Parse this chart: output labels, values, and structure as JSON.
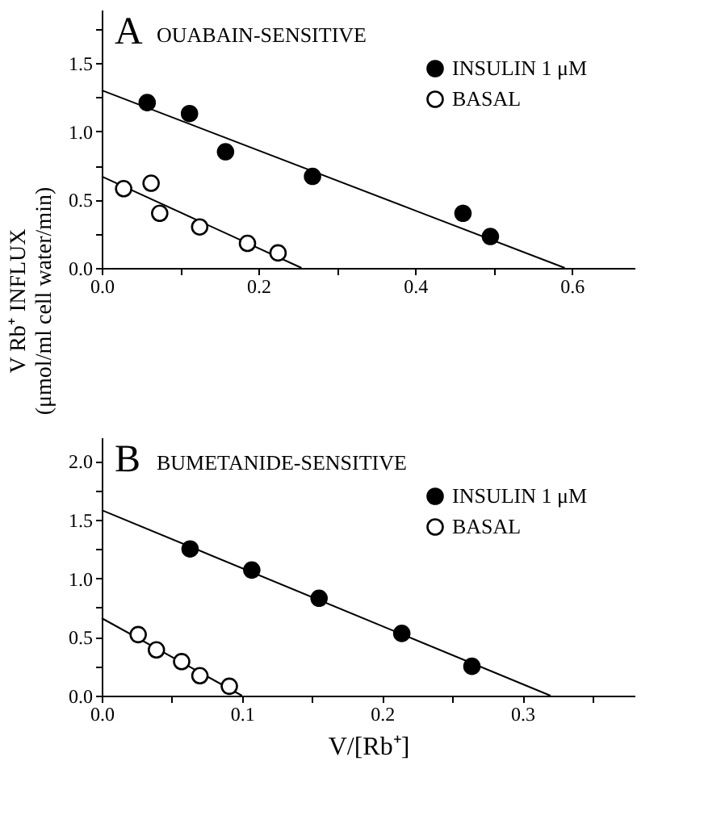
{
  "chart_data": [
    {
      "type": "scatter",
      "annotations": [
        "A",
        "OUABAIN-SENSITIVE"
      ],
      "ylabel": "V Rb⁺ INFLUX\n(μmol/ml cell water/min)",
      "legend": "top right",
      "grid": false,
      "xlim": [
        0,
        0.68
      ],
      "ylim": [
        0,
        1.89
      ],
      "xticks": [
        {
          "value": 0,
          "label": "0.0"
        },
        {
          "value": 0.1,
          "label": null
        },
        {
          "value": 0.2,
          "label": "0.2"
        },
        {
          "value": 0.3,
          "label": null
        },
        {
          "value": 0.4,
          "label": "0.4"
        },
        {
          "value": 0.5,
          "label": null
        },
        {
          "value": 0.6,
          "label": "0.6"
        }
      ],
      "yticks": [
        {
          "value": 0,
          "label": "0.0"
        },
        {
          "value": 0.25,
          "label": null
        },
        {
          "value": 0.5,
          "label": "0.5"
        },
        {
          "value": 0.75,
          "label": null
        },
        {
          "value": 1.0,
          "label": "1.0"
        },
        {
          "value": 1.25,
          "label": null
        },
        {
          "value": 1.5,
          "label": "1.5"
        },
        {
          "value": 1.75,
          "label": null
        }
      ],
      "series": [
        {
          "name": "INSULIN 1 μM",
          "type": "scatter",
          "marker": "circle",
          "color": "#000000",
          "x": [
            0.058,
            0.112,
            0.158,
            0.269,
            0.461,
            0.496
          ],
          "values": [
            1.21,
            1.13,
            0.85,
            0.67,
            0.4,
            0.23
          ]
        },
        {
          "name": "BASAL",
          "type": "scatter",
          "marker": "circle",
          "color": "#ffffff",
          "x": [
            0.028,
            0.063,
            0.074,
            0.125,
            0.186,
            0.225
          ],
          "values": [
            0.58,
            0.62,
            0.4,
            0.3,
            0.18,
            0.11
          ]
        },
        {
          "type": "line",
          "color": "#000000",
          "x": [
            0,
            0.591
          ],
          "values": [
            1.3,
            0
          ]
        },
        {
          "type": "line",
          "color": "#000000",
          "x": [
            0,
            0.255
          ],
          "values": [
            0.67,
            0
          ]
        }
      ]
    },
    {
      "type": "scatter",
      "annotations": [
        "B",
        "BUMETANIDE-SENSITIVE"
      ],
      "xlabel": "V/[Rb⁺]",
      "legend": "top right",
      "grid": false,
      "xlim": [
        0,
        0.38
      ],
      "ylim": [
        0,
        2.2
      ],
      "xticks": [
        {
          "value": 0,
          "label": "0.0"
        },
        {
          "value": 0.05,
          "label": null
        },
        {
          "value": 0.1,
          "label": "0.1"
        },
        {
          "value": 0.15,
          "label": null
        },
        {
          "value": 0.2,
          "label": "0.2"
        },
        {
          "value": 0.25,
          "label": null
        },
        {
          "value": 0.3,
          "label": "0.3"
        },
        {
          "value": 0.35,
          "label": null
        }
      ],
      "yticks": [
        {
          "value": 0,
          "label": "0.0"
        },
        {
          "value": 0.25,
          "label": null
        },
        {
          "value": 0.5,
          "label": "0.5"
        },
        {
          "value": 0.75,
          "label": null
        },
        {
          "value": 1.0,
          "label": "1.0"
        },
        {
          "value": 1.25,
          "label": null
        },
        {
          "value": 1.5,
          "label": "1.5"
        },
        {
          "value": 1.75,
          "label": null
        },
        {
          "value": 2.0,
          "label": "2.0"
        }
      ],
      "series": [
        {
          "name": "INSULIN 1 μM",
          "type": "scatter",
          "marker": "circle",
          "color": "#000000",
          "x": [
            0.063,
            0.107,
            0.155,
            0.214,
            0.264
          ],
          "values": [
            1.25,
            1.07,
            0.83,
            0.53,
            0.25
          ]
        },
        {
          "name": "BASAL",
          "type": "scatter",
          "marker": "circle",
          "color": "#ffffff",
          "x": [
            0.026,
            0.039,
            0.057,
            0.07,
            0.091
          ],
          "values": [
            0.52,
            0.39,
            0.29,
            0.17,
            0.08
          ]
        },
        {
          "type": "line",
          "color": "#000000",
          "x": [
            0,
            0.32
          ],
          "values": [
            1.58,
            0
          ]
        },
        {
          "type": "line",
          "color": "#000000",
          "x": [
            0,
            0.1
          ],
          "values": [
            0.66,
            0
          ]
        }
      ]
    }
  ]
}
